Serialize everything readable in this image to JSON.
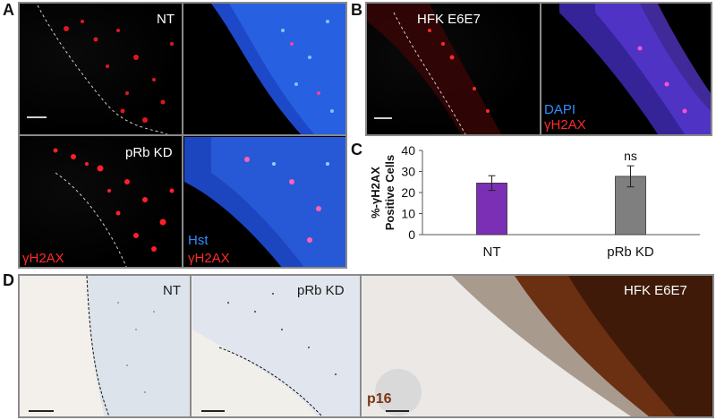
{
  "panel_labels": {
    "A": "A",
    "B": "B",
    "C": "C",
    "D": "D"
  },
  "panel_a": {
    "nt": "NT",
    "prb_kd": "pRb KD",
    "gamma_h2ax_left": "γH2AX",
    "hst": "Hst",
    "gamma_h2ax_right": "γH2AX"
  },
  "panel_b": {
    "title": "HFK E6E7",
    "dapi": "DAPI",
    "gamma_h2ax": "γH2AX"
  },
  "panel_d": {
    "nt": "NT",
    "prb_kd": "pRb KD",
    "hfk": "HFK E6E7",
    "p16": "p16"
  },
  "colors": {
    "red_stain": "#ff2a2a",
    "blue_stain": "#2f8dff",
    "nt_bar": "#7b2fb5",
    "prb_bar": "#7f7f7f",
    "brown_stain": "#6b2f12"
  },
  "chart_data": {
    "type": "bar",
    "ylabel_line1": "%-γH2AX",
    "ylabel_line2": "Positive Cells",
    "categories": [
      "NT",
      "pRb KD"
    ],
    "values": [
      24.5,
      27.7
    ],
    "errors": [
      3.5,
      5.0
    ],
    "bar_colors": [
      "#7b2fb5",
      "#7f7f7f"
    ],
    "ylim": [
      0,
      40
    ],
    "yticks": [
      0,
      10,
      20,
      30,
      40
    ],
    "annotations": [
      {
        "category": "pRb KD",
        "text": "ns"
      }
    ],
    "grid": false
  }
}
